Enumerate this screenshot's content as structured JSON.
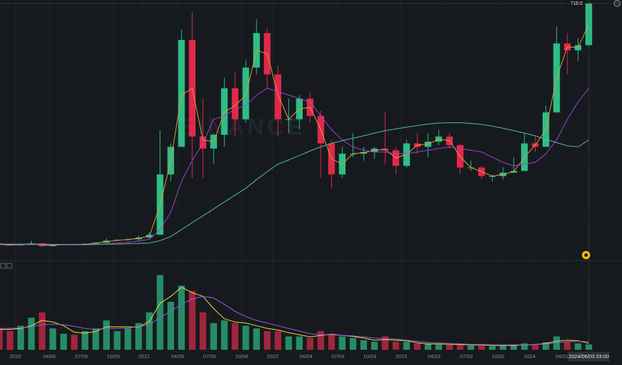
{
  "chart_data": {
    "type": "candlestick",
    "watermark": "BINANCE",
    "crosshair_time": "2024/06/03 03:00",
    "last_price": {
      "value": 716,
      "label": "716.0"
    },
    "up_color": "#2ebd85",
    "down_color": "#e0294a",
    "xlim": [
      "2019-11-18",
      "2024-09-19"
    ],
    "ylim": [
      -26,
      726
    ],
    "volume_ylim": [
      0,
      150
    ],
    "x": [
      "2019-11",
      "2019-12",
      "2020-01",
      "2020-02",
      "2020-03",
      "2020-04",
      "2020-05",
      "2020-06",
      "2020-07",
      "2020-08",
      "2020-09",
      "2020-10",
      "2020-11",
      "2020-12",
      "2021-01",
      "2021-02",
      "2021-03",
      "2021-04",
      "2021-05",
      "2021-06",
      "2021-07",
      "2021-08",
      "2021-09",
      "2021-10",
      "2021-11",
      "2021-12",
      "2022-01",
      "2022-02",
      "2022-03",
      "2022-04",
      "2022-05",
      "2022-06",
      "2022-07",
      "2022-08",
      "2022-09",
      "2022-10",
      "2022-11",
      "2022-12",
      "2023-01",
      "2023-02",
      "2023-03",
      "2023-04",
      "2023-05",
      "2023-06",
      "2023-07",
      "2023-08",
      "2023-09",
      "2023-10",
      "2023-11",
      "2023-12",
      "2024-01",
      "2024-02",
      "2024-03",
      "2024-04",
      "2024-05",
      "2024-06"
    ],
    "open": [
      20,
      16,
      14,
      17,
      20,
      12,
      16,
      17,
      15,
      19,
      22,
      28,
      30,
      32,
      37,
      45,
      220,
      300,
      610,
      330,
      295,
      335,
      470,
      380,
      530,
      630,
      510,
      380,
      380,
      440,
      390,
      310,
      220,
      280,
      280,
      285,
      295,
      290,
      245,
      310,
      300,
      315,
      330,
      305,
      240,
      240,
      215,
      215,
      225,
      230,
      310,
      300,
      400,
      600,
      580,
      595
    ],
    "high": [
      21,
      17,
      19,
      27,
      21,
      17,
      18,
      19,
      20,
      24,
      34,
      32,
      35,
      43,
      53,
      348,
      310,
      640,
      690,
      440,
      340,
      500,
      515,
      550,
      670,
      645,
      535,
      440,
      450,
      460,
      405,
      320,
      300,
      340,
      300,
      300,
      400,
      300,
      320,
      340,
      340,
      350,
      340,
      310,
      260,
      245,
      220,
      240,
      270,
      340,
      330,
      420,
      650,
      630,
      615,
      716
    ],
    "low": [
      15,
      13,
      13,
      17,
      9,
      11,
      15,
      15,
      15,
      19,
      22,
      27,
      27,
      28,
      35,
      45,
      200,
      300,
      210,
      210,
      250,
      300,
      330,
      370,
      510,
      470,
      330,
      340,
      350,
      370,
      210,
      180,
      210,
      270,
      260,
      265,
      250,
      220,
      240,
      280,
      270,
      305,
      295,
      220,
      230,
      205,
      200,
      205,
      225,
      230,
      285,
      300,
      400,
      510,
      550,
      590
    ],
    "close": [
      16,
      14,
      17,
      20,
      12,
      16,
      17,
      15,
      19,
      22,
      28,
      30,
      32,
      37,
      45,
      220,
      300,
      610,
      330,
      295,
      335,
      470,
      380,
      530,
      630,
      510,
      380,
      380,
      440,
      390,
      310,
      220,
      280,
      280,
      285,
      295,
      290,
      245,
      310,
      300,
      315,
      330,
      305,
      240,
      240,
      215,
      215,
      225,
      230,
      310,
      300,
      400,
      600,
      580,
      595,
      716
    ],
    "volume": [
      40,
      35,
      45,
      60,
      70,
      40,
      30,
      28,
      35,
      40,
      55,
      35,
      40,
      50,
      70,
      140,
      90,
      120,
      110,
      70,
      50,
      55,
      50,
      45,
      40,
      35,
      35,
      25,
      25,
      22,
      35,
      30,
      25,
      22,
      18,
      15,
      25,
      15,
      15,
      12,
      12,
      10,
      9,
      12,
      8,
      8,
      7,
      8,
      10,
      12,
      10,
      14,
      25,
      15,
      12,
      10
    ],
    "moving_averages": [
      {
        "color": "#e39a3b",
        "values": [
          17,
          15,
          16,
          19,
          15,
          14,
          17,
          16,
          17,
          21,
          25,
          29,
          31,
          35,
          41,
          130,
          260,
          450,
          470,
          320,
          315,
          400,
          420,
          450,
          580,
          570,
          450,
          380,
          410,
          415,
          350,
          265,
          250,
          280,
          283,
          290,
          292,
          268,
          278,
          305,
          308,
          322,
          318,
          272,
          240,
          228,
          215,
          220,
          228,
          270,
          305,
          350,
          500,
          590,
          588,
          655
        ]
      },
      {
        "color": "#a93fd8",
        "values": [
          18,
          17,
          16,
          17,
          16,
          16,
          16,
          16,
          16,
          17,
          19,
          21,
          23,
          27,
          32,
          60,
          110,
          200,
          260,
          310,
          380,
          390,
          410,
          420,
          450,
          470,
          460,
          450,
          440,
          430,
          390,
          350,
          320,
          300,
          290,
          285,
          285,
          280,
          280,
          285,
          290,
          295,
          300,
          295,
          290,
          285,
          270,
          255,
          245,
          250,
          255,
          280,
          320,
          380,
          430,
          470
        ]
      },
      {
        "color": "#5ab8a8",
        "values": [
          18,
          18,
          18,
          18,
          18,
          17,
          17,
          17,
          17,
          17,
          18,
          18,
          19,
          20,
          21,
          28,
          40,
          60,
          80,
          100,
          120,
          140,
          160,
          180,
          205,
          228,
          250,
          262,
          275,
          288,
          300,
          310,
          318,
          325,
          332,
          340,
          347,
          352,
          357,
          362,
          366,
          369,
          370,
          370,
          368,
          365,
          360,
          354,
          347,
          340,
          332,
          322,
          312,
          303,
          300,
          320
        ]
      }
    ],
    "volume_moving_averages": [
      {
        "color": "#f0e030",
        "values": [
          38,
          38,
          40,
          45,
          55,
          52,
          45,
          33,
          31,
          34,
          43,
          43,
          43,
          42,
          53,
          87,
          100,
          117,
          107,
          100,
          77,
          58,
          52,
          50,
          45,
          40,
          37,
          32,
          28,
          24,
          27,
          29,
          27,
          25,
          22,
          18,
          19,
          18,
          17,
          13,
          11,
          11,
          10,
          10,
          9,
          9,
          8,
          8,
          8,
          9,
          10,
          12,
          16,
          18,
          17,
          12
        ]
      },
      {
        "color": "#9a5ce0",
        "values": [
          40,
          40,
          41,
          43,
          47,
          48,
          47,
          44,
          40,
          38,
          40,
          40,
          41,
          43,
          47,
          60,
          72,
          85,
          95,
          100,
          97,
          85,
          72,
          62,
          55,
          50,
          45,
          40,
          35,
          30,
          28,
          28,
          27,
          26,
          24,
          22,
          21,
          20,
          18,
          16,
          14,
          13,
          12,
          11,
          10,
          10,
          9,
          9,
          9,
          9,
          10,
          11,
          13,
          15,
          16,
          15
        ]
      }
    ],
    "xticks": [
      {
        "value": "2020-01-01",
        "label": "2020"
      },
      {
        "value": "2020-04-06",
        "label": "04/06"
      },
      {
        "value": "2020-07-06",
        "label": "07/06"
      },
      {
        "value": "2020-10-05",
        "label": "10/05"
      },
      {
        "value": "2021-01-01",
        "label": "2021"
      },
      {
        "value": "2021-04-05",
        "label": "04/05"
      },
      {
        "value": "2021-07-05",
        "label": "07/05"
      },
      {
        "value": "2021-10-04",
        "label": "10/04"
      },
      {
        "value": "2022-01-01",
        "label": "2022"
      },
      {
        "value": "2022-04-04",
        "label": "04/04"
      },
      {
        "value": "2022-07-04",
        "label": "07/04"
      },
      {
        "value": "2022-10-03",
        "label": "10/03"
      },
      {
        "value": "2023-01-01",
        "label": "2023"
      },
      {
        "value": "2023-04-03",
        "label": "04/03"
      },
      {
        "value": "2023-07-03",
        "label": "07/03"
      },
      {
        "value": "2023-10-02",
        "label": "10/02"
      },
      {
        "value": "2024-01-01",
        "label": "2024"
      },
      {
        "value": "2024-04-01",
        "label": "04/01"
      }
    ]
  }
}
